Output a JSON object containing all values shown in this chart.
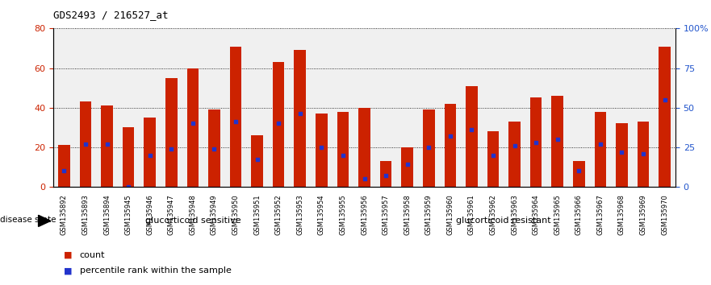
{
  "title": "GDS2493 / 216527_at",
  "samples": [
    "GSM135892",
    "GSM135893",
    "GSM135894",
    "GSM135945",
    "GSM135946",
    "GSM135947",
    "GSM135948",
    "GSM135949",
    "GSM135950",
    "GSM135951",
    "GSM135952",
    "GSM135953",
    "GSM135954",
    "GSM135955",
    "GSM135956",
    "GSM135957",
    "GSM135958",
    "GSM135959",
    "GSM135960",
    "GSM135961",
    "GSM135962",
    "GSM135963",
    "GSM135964",
    "GSM135965",
    "GSM135966",
    "GSM135967",
    "GSM135968",
    "GSM135969",
    "GSM135970"
  ],
  "counts": [
    21,
    43,
    41,
    30,
    35,
    55,
    60,
    39,
    71,
    26,
    63,
    69,
    37,
    38,
    40,
    13,
    20,
    39,
    42,
    51,
    28,
    33,
    45,
    46,
    13,
    38,
    32,
    33,
    71
  ],
  "percentiles": [
    10,
    27,
    27,
    0,
    20,
    24,
    40,
    24,
    41,
    17,
    40,
    46,
    25,
    20,
    5,
    7,
    14,
    25,
    32,
    36,
    20,
    26,
    28,
    30,
    10,
    27,
    22,
    21,
    55
  ],
  "sensitive_count": 13,
  "resistant_count": 16,
  "bar_color": "#cc2200",
  "percentile_color": "#2233cc",
  "tick_color_left": "#cc2200",
  "tick_color_right": "#2255cc",
  "ylim_left": [
    0,
    80
  ],
  "ylim_right": [
    0,
    100
  ],
  "yticks_left": [
    0,
    20,
    40,
    60,
    80
  ],
  "ytick_labels_left": [
    "0",
    "20",
    "40",
    "60",
    "80"
  ],
  "yticks_right": [
    0,
    25,
    50,
    75,
    100
  ],
  "ytick_labels_right": [
    "0",
    "25",
    "50",
    "75",
    "100%"
  ],
  "group_label_sensitive": "glucorticoid sensitive",
  "group_label_resistant": "glucorticoid resistant",
  "disease_state_label": "disease state",
  "legend_count": "count",
  "legend_percentile": "percentile rank within the sample",
  "sensitive_color": "#aaeea0",
  "resistant_color": "#55dd44",
  "bar_width": 0.55
}
